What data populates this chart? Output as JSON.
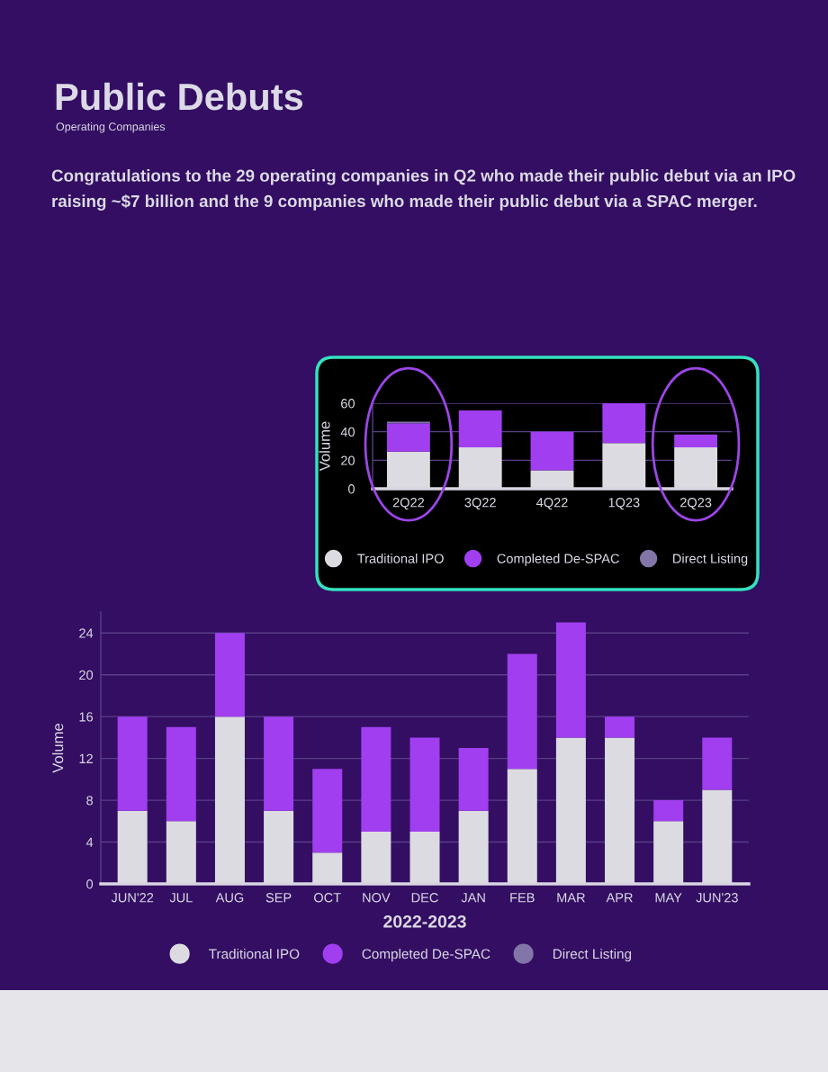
{
  "chart_data": [
    {
      "type": "other",
      "title": "Public Debuts",
      "subtitle": "Operating Companies",
      "annotations": [
        "Congratulations to the 29 operating companies in Q2 who made their public debut via an IPO raising ~$7 billion and the 9 companies who made their public debut via a SPAC merger."
      ]
    },
    {
      "type": "bar",
      "categories": [
        "2Q22",
        "3Q22",
        "4Q22",
        "1Q23",
        "2Q23"
      ],
      "ylabel": "Volume",
      "stacked": true,
      "ylim": [
        0,
        60
      ],
      "yticks": [
        0,
        20,
        40,
        60
      ],
      "grid": "y",
      "legend": "bottom",
      "series": [
        {
          "name": "Traditional IPO",
          "color": "#dcdbe1",
          "values": [
            26,
            29,
            13,
            32,
            29
          ]
        },
        {
          "name": "Completed De-SPAC",
          "color": "#a03ef0",
          "values": [
            20,
            26,
            27,
            28,
            9
          ]
        },
        {
          "name": "Direct Listing",
          "color": "#8276a8",
          "values": [
            1,
            0,
            0,
            0,
            0
          ]
        }
      ]
    },
    {
      "type": "bar",
      "xlabel": "2022-2023",
      "ylabel": "Volume",
      "categories": [
        "JUN'22",
        "JUL",
        "AUG",
        "SEP",
        "OCT",
        "NOV",
        "DEC",
        "JAN",
        "FEB",
        "MAR",
        "APR",
        "MAY",
        "JUN'23"
      ],
      "stacked": true,
      "ylim": [
        0,
        26
      ],
      "yticks": [
        0,
        4,
        8,
        12,
        16,
        20,
        24
      ],
      "grid": "y",
      "legend": "bottom",
      "series": [
        {
          "name": "Traditional IPO",
          "color": "#dcdbe1",
          "values": [
            7,
            6,
            16,
            7,
            3,
            5,
            5,
            7,
            11,
            14,
            14,
            6,
            9
          ]
        },
        {
          "name": "Completed De-SPAC",
          "color": "#a03ef0",
          "values": [
            9,
            9,
            8,
            9,
            8,
            10,
            9,
            6,
            11,
            11,
            2,
            2,
            5
          ]
        },
        {
          "name": "Direct Listing",
          "color": "#8276a8",
          "values": [
            0,
            0,
            0,
            0,
            0,
            0,
            0,
            0,
            0,
            0,
            0,
            0,
            0
          ]
        }
      ]
    }
  ]
}
